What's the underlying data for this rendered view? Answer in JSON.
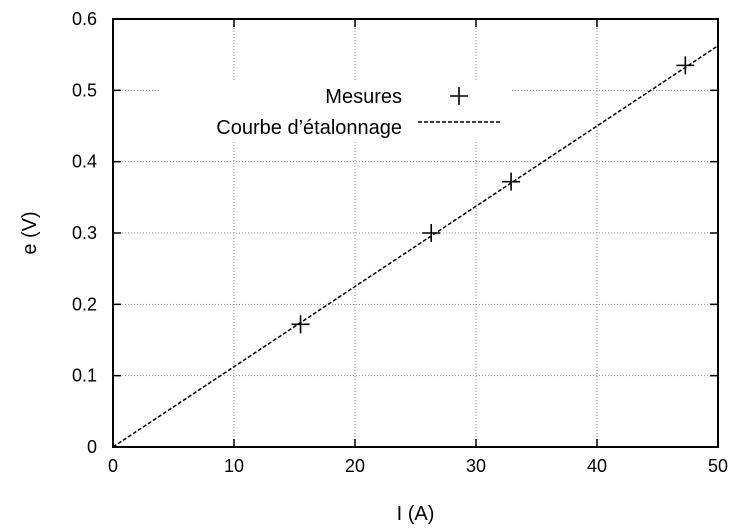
{
  "chart_data": {
    "type": "scatter",
    "title": "",
    "xlabel": "I (A)",
    "ylabel": "e (V)",
    "xlim": [
      0,
      50
    ],
    "ylim": [
      0,
      0.6
    ],
    "xticks": [
      "0",
      "10",
      "20",
      "30",
      "40",
      "50"
    ],
    "yticks": [
      "0",
      "0.1",
      "0.2",
      "0.3",
      "0.4",
      "0.5",
      "0.6"
    ],
    "grid": true,
    "legend_position": "top-center",
    "series": [
      {
        "name": "Mesures",
        "kind": "points",
        "marker": "plus",
        "color": "#000000",
        "x": [
          15.5,
          26.3,
          32.9,
          47.3
        ],
        "y": [
          0.172,
          0.3,
          0.372,
          0.535
        ]
      },
      {
        "name": "Courbe d’étalonnage",
        "kind": "dashed-line",
        "color": "#000000",
        "x": [
          0,
          50
        ],
        "y": [
          0,
          0.5625
        ]
      }
    ]
  }
}
